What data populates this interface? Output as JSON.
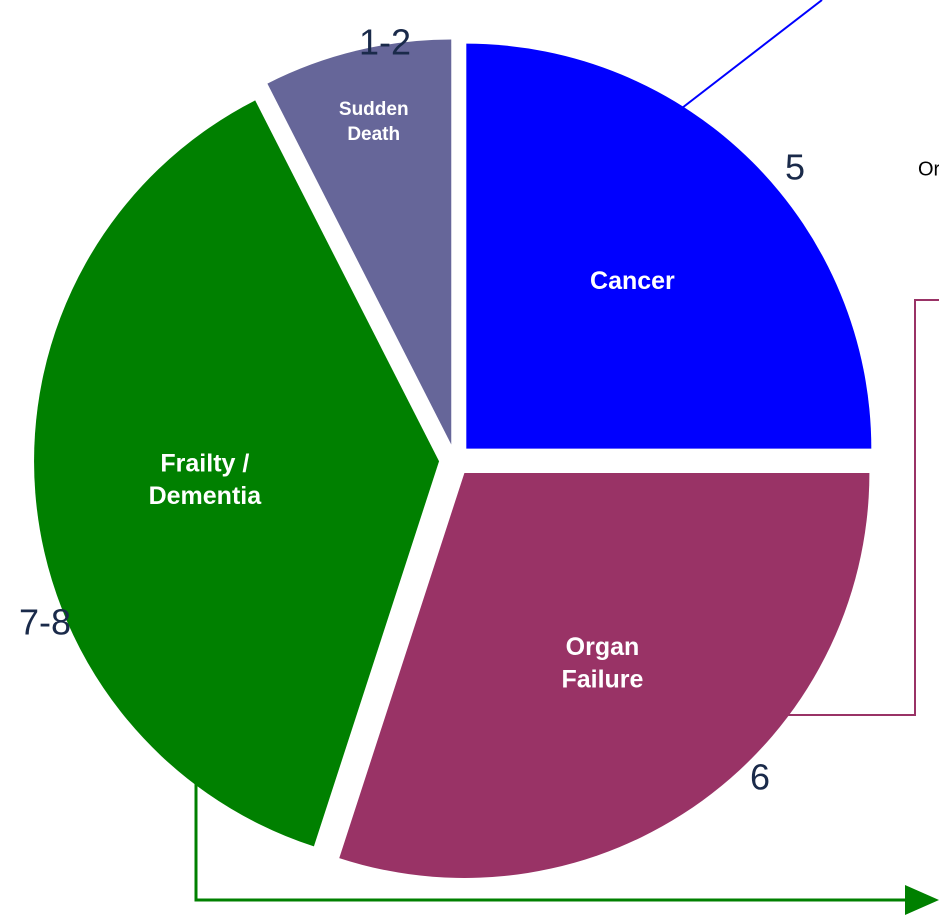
{
  "chart_data": {
    "type": "pie",
    "categories": [
      "Sudden Death",
      "Cancer",
      "Organ Failure",
      "Frailty / Dementia"
    ],
    "values": [
      1.5,
      5,
      6,
      7.5
    ],
    "value_labels": [
      "1-2",
      "5",
      "6",
      "7-8"
    ],
    "colors": [
      "#666699",
      "#0000ff",
      "#993366",
      "#008000"
    ],
    "annotations": [
      "Or"
    ]
  }
}
